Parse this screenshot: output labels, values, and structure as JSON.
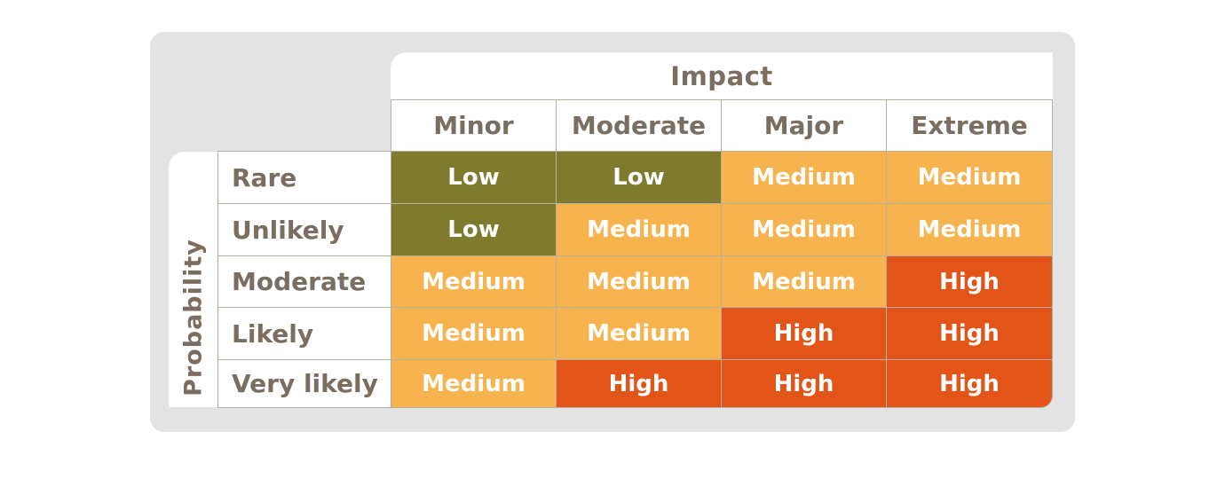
{
  "axis": {
    "impact_title": "Impact",
    "probability_title": "Probability"
  },
  "columns": [
    "Minor",
    "Moderate",
    "Major",
    "Extreme"
  ],
  "rows": [
    "Rare",
    "Unlikely",
    "Moderate",
    "Likely",
    "Very likely"
  ],
  "matrix": [
    [
      "Low",
      "Low",
      "Medium",
      "Medium"
    ],
    [
      "Low",
      "Medium",
      "Medium",
      "Medium"
    ],
    [
      "Medium",
      "Medium",
      "Medium",
      "High"
    ],
    [
      "Medium",
      "Medium",
      "High",
      "High"
    ],
    [
      "Medium",
      "High",
      "High",
      "High"
    ]
  ],
  "colors": {
    "Low": "#7e7b2f",
    "Medium": "#f6b34e",
    "High": "#e35419",
    "label_text": "#7b6e60",
    "frame": "#e3e3e3"
  }
}
